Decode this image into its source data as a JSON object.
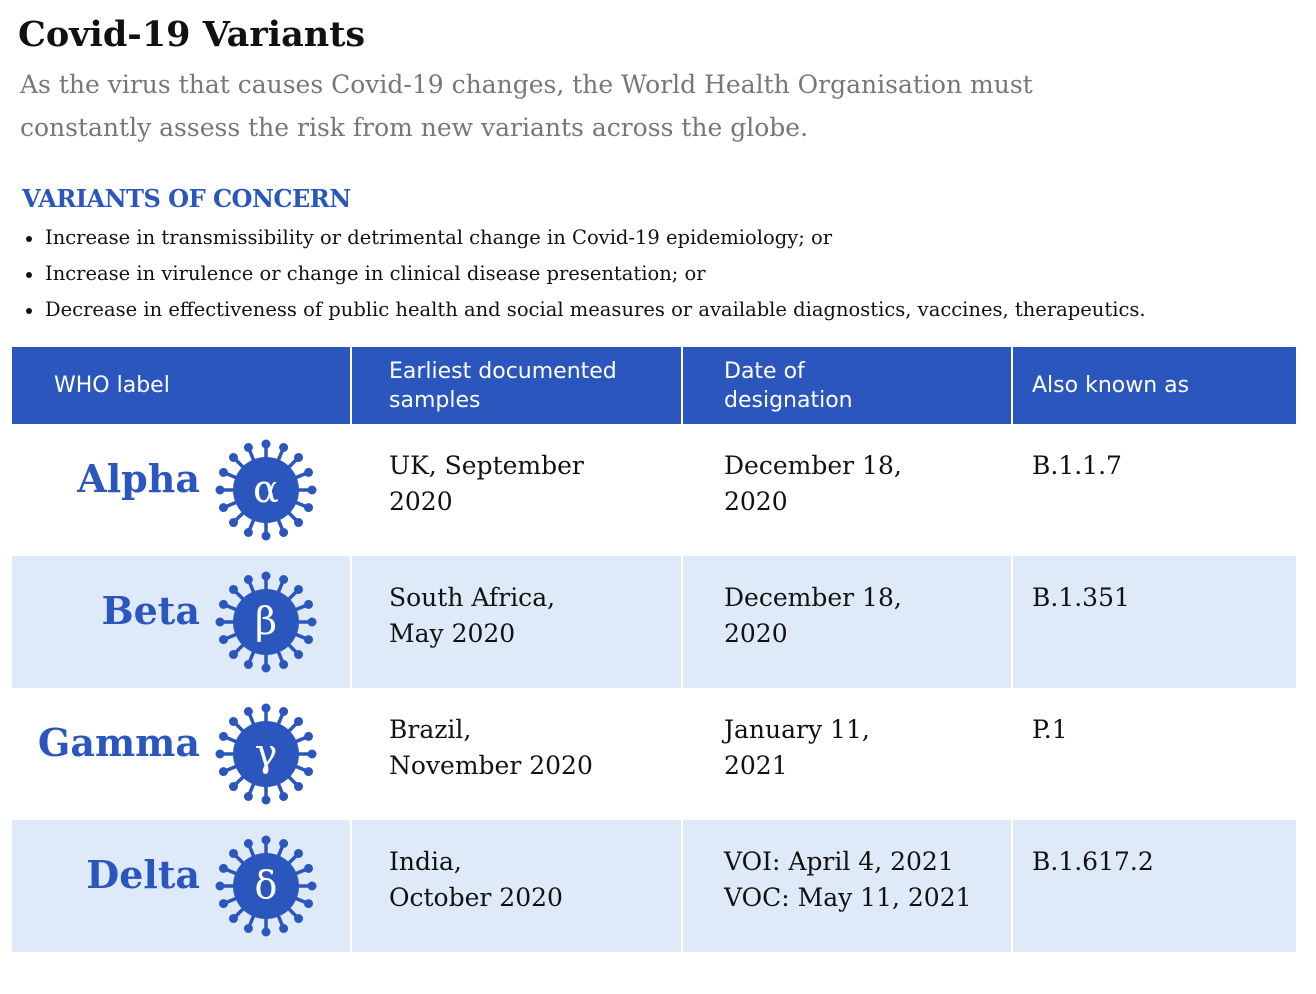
{
  "header": {
    "title": "Covid-19 Variants",
    "subtitle": [
      "As the virus that causes Covid-19 changes, the World Health Organisation must",
      "constantly assess the risk from new variants across the globe."
    ]
  },
  "section": {
    "heading": "VARIANTS OF CONCERN",
    "bullets": [
      "Increase in transmissibility or detrimental change in Covid-19 epidemiology; or",
      "Increase in virulence or change in clinical disease presentation; or",
      "Decrease in effectiveness of public health and social measures or available diagnostics, vaccines, therapeutics."
    ]
  },
  "table": {
    "columns": [
      [
        "WHO label"
      ],
      [
        "Earliest documented",
        "samples"
      ],
      [
        "Date of",
        "designation"
      ],
      [
        "Also known as"
      ]
    ],
    "rows": [
      {
        "label": "Alpha",
        "symbol": "α",
        "samples": [
          "UK, September",
          "2020"
        ],
        "date": [
          "December 18,",
          "2020"
        ],
        "aka": [
          "B.1.1.7"
        ]
      },
      {
        "label": "Beta",
        "symbol": "β",
        "samples": [
          "South Africa,",
          "May 2020"
        ],
        "date": [
          "December 18,",
          "2020"
        ],
        "aka": [
          "B.1.351"
        ]
      },
      {
        "label": "Gamma",
        "symbol": "γ",
        "samples": [
          "Brazil,",
          "November 2020"
        ],
        "date": [
          "January 11,",
          "2021"
        ],
        "aka": [
          "P.1"
        ]
      },
      {
        "label": "Delta",
        "symbol": "δ",
        "samples": [
          "India,",
          "October 2020"
        ],
        "date": [
          "VOI: April 4, 2021",
          "VOC: May 11, 2021"
        ],
        "aka": [
          "B.1.617.2"
        ]
      }
    ]
  }
}
